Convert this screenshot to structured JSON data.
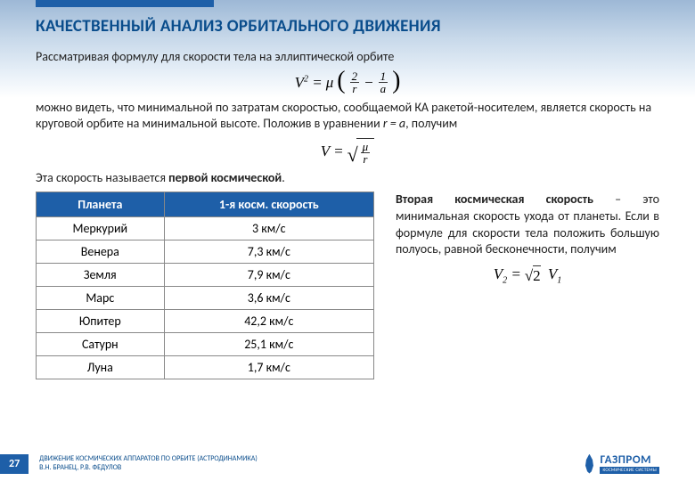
{
  "title": "КАЧЕСТВЕННЫЙ АНАЛИЗ ОРБИТАЛЬНОГО ДВИЖЕНИЯ",
  "p1": "Рассматривая формулу для скорости тела на эллиптической орбите",
  "f1": {
    "lhs": "V², =",
    "mu": "μ",
    "t2": "2",
    "tr": "r",
    "t1": "1",
    "ta": "a"
  },
  "p2_a": "можно видеть, что минимальной по затратам скоростью, сообщаемой КА ракетой-носителем, является скорость на круговой орбите на минимальной высоте. Положив в уравнении ",
  "p2_b": "r = a",
  "p2_c": ", получим",
  "f2": {
    "lhs": "V =",
    "mu": "μ",
    "r": "r"
  },
  "p3_a": "Эта скорость называется ",
  "p3_b": "первой космической",
  "p3_c": ".",
  "table": {
    "headers": [
      "Планета",
      "1-я косм. скорость"
    ],
    "rows": [
      [
        "Меркурий",
        "3 км/с"
      ],
      [
        "Венера",
        "7,3 км/с"
      ],
      [
        "Земля",
        "7,9 км/с"
      ],
      [
        "Марс",
        "3,6 км/с"
      ],
      [
        "Юпитер",
        "42,2 км/с"
      ],
      [
        "Сатурн",
        "25,1 км/с"
      ],
      [
        "Луна",
        "1,7 км/с"
      ]
    ]
  },
  "right": {
    "bold": "Вторая космическая скорость",
    "rest": " – это минимальная скорость ухода от планеты. Если в формуле для скорости тела положить большую полуось, равной бесконечности, получим"
  },
  "f3": {
    "v2": "V₂ =",
    "sq2": "√2",
    "v1": "V₁"
  },
  "footer": {
    "page": "27",
    "line1": "ДВИЖЕНИЕ КОСМИЧЕСКИХ АППАРАТОВ ПО ОРБИТЕ (АСТРОДИНАМИКА)",
    "line2": "В.Н. БРАНЕЦ, Р.В. ФЕДУЛОВ",
    "logo": "ГАЗПРОМ",
    "logo_sub": "КОСМИЧЕСКИЕ СИСТЕМЫ"
  },
  "colors": {
    "accent": "#1e5fa8",
    "title": "#0a4d8c"
  }
}
